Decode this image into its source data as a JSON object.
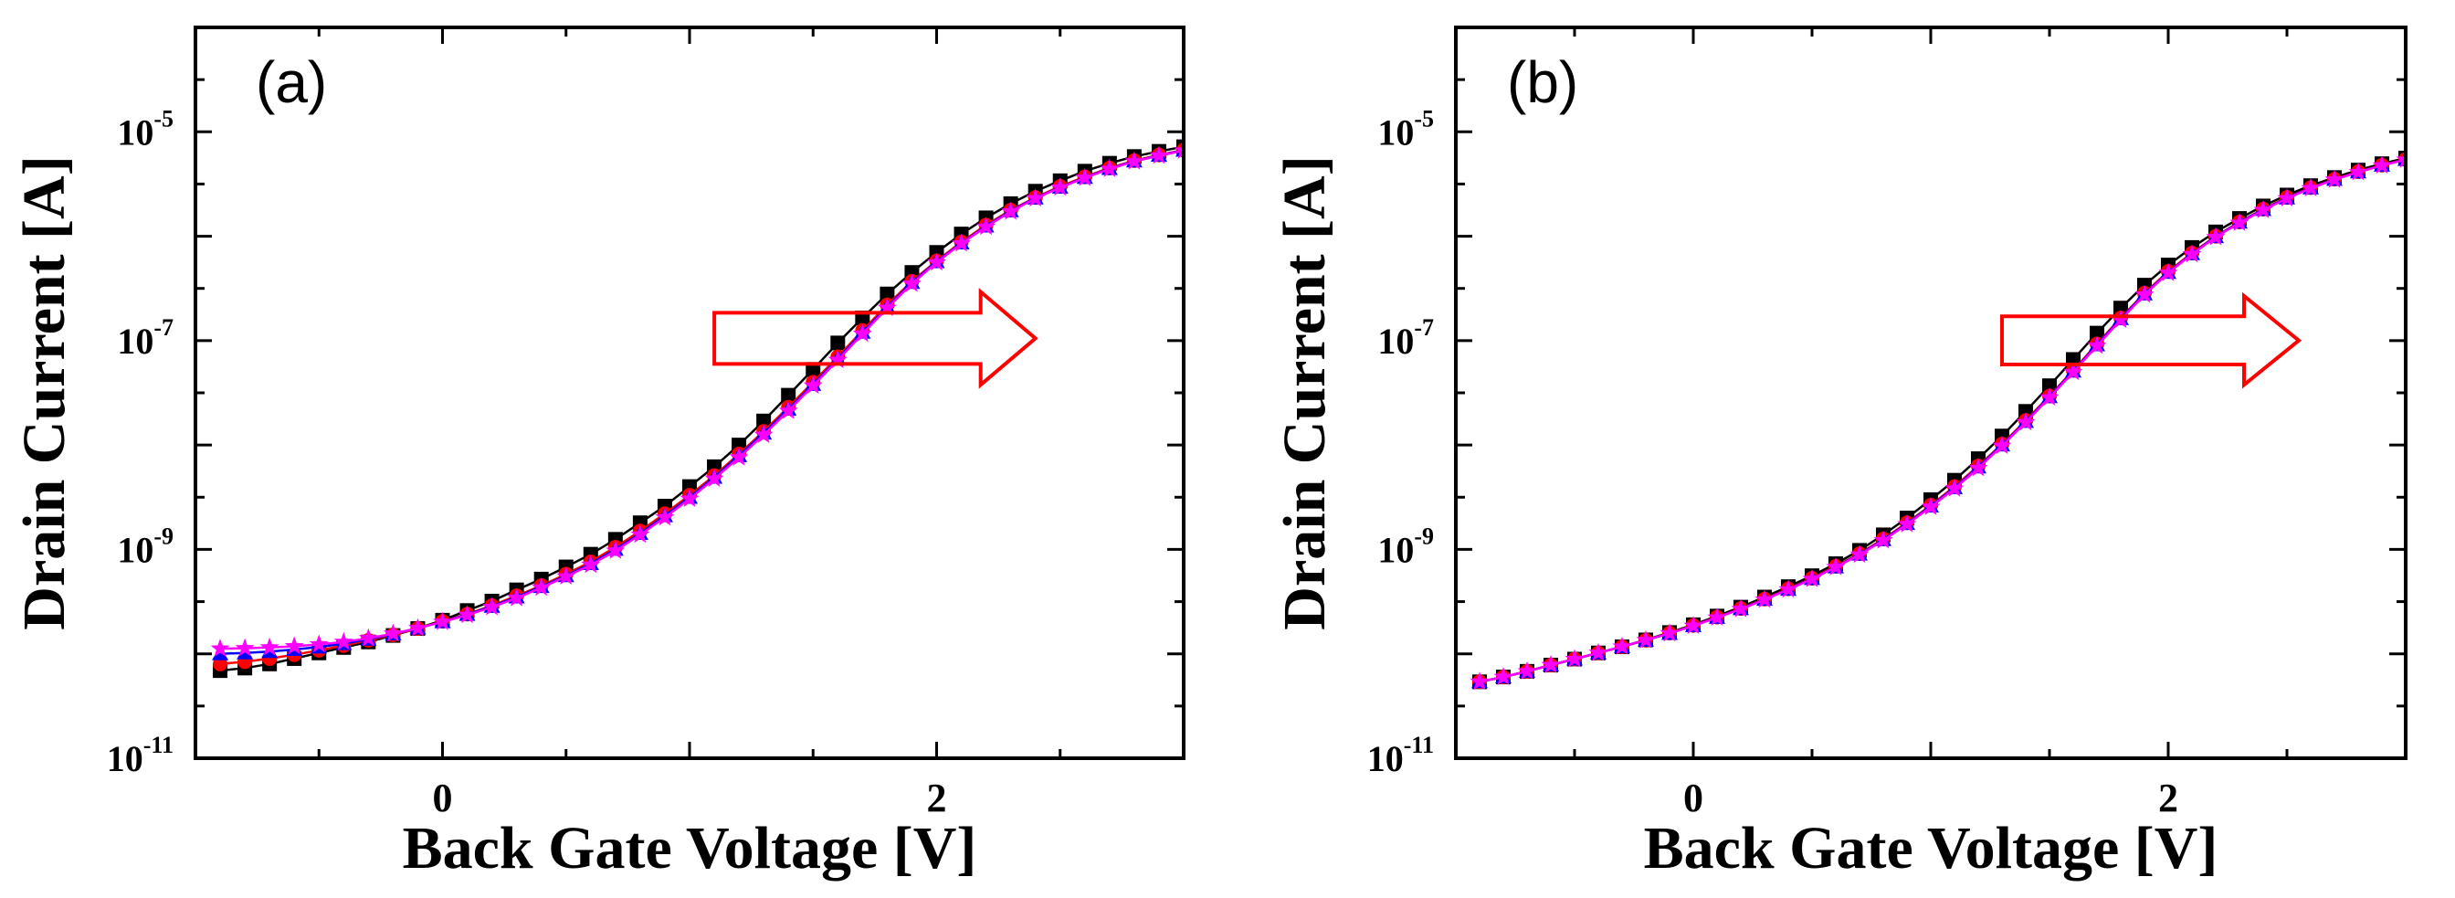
{
  "chart_data": [
    {
      "type": "line",
      "panel_label": "(a)",
      "xlabel": "Back Gate Voltage [V]",
      "ylabel": "Drain Current [A]",
      "xscale": "linear",
      "yscale": "log",
      "xlim": [
        -1.0,
        3.0
      ],
      "ylim": [
        1e-11,
        0.0001
      ],
      "x_ticks": [
        {
          "value": 0,
          "label": "0"
        },
        {
          "value": 2,
          "label": "2"
        }
      ],
      "y_ticks": [
        {
          "value": 1e-11,
          "base": "10",
          "exp": "-11"
        },
        {
          "value": 1e-09,
          "base": "10",
          "exp": "-9"
        },
        {
          "value": 1e-07,
          "base": "10",
          "exp": "-7"
        },
        {
          "value": 1e-05,
          "base": "10",
          "exp": "-5"
        }
      ],
      "annotation": "arrow pointing right (threshold voltage shift)",
      "series": [
        {
          "name": "black squares",
          "color": "#000000",
          "marker": "square",
          "x": [
            -0.9,
            -0.8,
            -0.7,
            -0.6,
            -0.5,
            -0.4,
            -0.3,
            -0.2,
            -0.1,
            0.0,
            0.1,
            0.2,
            0.3,
            0.4,
            0.5,
            0.6,
            0.7,
            0.8,
            0.9,
            1.0,
            1.1,
            1.2,
            1.3,
            1.4,
            1.5,
            1.6,
            1.7,
            1.8,
            1.9,
            2.0,
            2.1,
            2.2,
            2.3,
            2.4,
            2.5,
            2.6,
            2.7,
            2.8,
            2.9,
            3.0
          ],
          "y": [
            6.9e-11,
            7.3e-11,
            8e-11,
            9e-11,
            1.02e-10,
            1.15e-10,
            1.3e-10,
            1.5e-10,
            1.75e-10,
            2.1e-10,
            2.6e-10,
            3.2e-10,
            4.1e-10,
            5.2e-10,
            6.8e-10,
            9e-10,
            1.25e-09,
            1.8e-09,
            2.6e-09,
            4e-09,
            6.2e-09,
            1e-08,
            1.7e-08,
            3e-08,
            5.3e-08,
            9.5e-08,
            1.65e-07,
            2.8e-07,
            4.5e-07,
            7e-07,
            1.05e-06,
            1.5e-06,
            2.05e-06,
            2.7e-06,
            3.4e-06,
            4.2e-06,
            5e-06,
            5.8e-06,
            6.5e-06,
            7.2e-06
          ]
        },
        {
          "name": "red circles",
          "color": "#ff0000",
          "marker": "circle",
          "x": [
            -0.9,
            -0.8,
            -0.7,
            -0.6,
            -0.5,
            -0.4,
            -0.3,
            -0.2,
            -0.1,
            0.0,
            0.1,
            0.2,
            0.3,
            0.4,
            0.5,
            0.6,
            0.7,
            0.8,
            0.9,
            1.0,
            1.1,
            1.2,
            1.3,
            1.4,
            1.5,
            1.6,
            1.7,
            1.8,
            1.9,
            2.0,
            2.1,
            2.2,
            2.3,
            2.4,
            2.5,
            2.6,
            2.7,
            2.8,
            2.9,
            3.0
          ],
          "y": [
            8e-11,
            8.4e-11,
            9e-11,
            9.8e-11,
            1.08e-10,
            1.2e-10,
            1.35e-10,
            1.52e-10,
            1.75e-10,
            2.05e-10,
            2.4e-10,
            2.9e-10,
            3.6e-10,
            4.5e-10,
            5.8e-10,
            7.6e-10,
            1.05e-09,
            1.5e-09,
            2.2e-09,
            3.3e-09,
            5.1e-09,
            8.2e-09,
            1.35e-08,
            2.3e-08,
            4e-08,
            7e-08,
            1.25e-07,
            2.2e-07,
            3.7e-07,
            5.8e-07,
            8.8e-07,
            1.28e-06,
            1.78e-06,
            2.35e-06,
            3e-06,
            3.7e-06,
            4.5e-06,
            5.3e-06,
            6e-06,
            6.7e-06
          ]
        },
        {
          "name": "blue triangles",
          "color": "#0000ff",
          "marker": "triangle",
          "x": [
            -0.9,
            -0.8,
            -0.7,
            -0.6,
            -0.5,
            -0.4,
            -0.3,
            -0.2,
            -0.1,
            0.0,
            0.1,
            0.2,
            0.3,
            0.4,
            0.5,
            0.6,
            0.7,
            0.8,
            0.9,
            1.0,
            1.1,
            1.2,
            1.3,
            1.4,
            1.5,
            1.6,
            1.7,
            1.8,
            1.9,
            2.0,
            2.1,
            2.2,
            2.3,
            2.4,
            2.5,
            2.6,
            2.7,
            2.8,
            2.9,
            3.0
          ],
          "y": [
            1e-10,
            1.02e-10,
            1.05e-10,
            1.1e-10,
            1.16e-10,
            1.25e-10,
            1.38e-10,
            1.55e-10,
            1.76e-10,
            2.03e-10,
            2.38e-10,
            2.85e-10,
            3.5e-10,
            4.4e-10,
            5.6e-10,
            7.3e-10,
            1e-09,
            1.42e-09,
            2.1e-09,
            3.15e-09,
            4.9e-09,
            7.9e-09,
            1.3e-08,
            2.2e-08,
            3.8e-08,
            6.7e-08,
            1.2e-07,
            2.1e-07,
            3.6e-07,
            5.7e-07,
            8.6e-07,
            1.25e-06,
            1.75e-06,
            2.32e-06,
            2.95e-06,
            3.65e-06,
            4.45e-06,
            5.25e-06,
            5.95e-06,
            6.65e-06
          ]
        },
        {
          "name": "magenta stars",
          "color": "#ff00ff",
          "marker": "star",
          "x": [
            -0.9,
            -0.8,
            -0.7,
            -0.6,
            -0.5,
            -0.4,
            -0.3,
            -0.2,
            -0.1,
            0.0,
            0.1,
            0.2,
            0.3,
            0.4,
            0.5,
            0.6,
            0.7,
            0.8,
            0.9,
            1.0,
            1.1,
            1.2,
            1.3,
            1.4,
            1.5,
            1.6,
            1.7,
            1.8,
            1.9,
            2.0,
            2.1,
            2.2,
            2.3,
            2.4,
            2.5,
            2.6,
            2.7,
            2.8,
            2.9,
            3.0
          ],
          "y": [
            1.12e-10,
            1.13e-10,
            1.15e-10,
            1.18e-10,
            1.23e-10,
            1.3e-10,
            1.41e-10,
            1.56e-10,
            1.76e-10,
            2.02e-10,
            2.35e-10,
            2.8e-10,
            3.42e-10,
            4.3e-10,
            5.5e-10,
            7.1e-10,
            9.7e-10,
            1.38e-09,
            2.02e-09,
            3.05e-09,
            4.75e-09,
            7.6e-09,
            1.25e-08,
            2.12e-08,
            3.7e-08,
            6.5e-08,
            1.16e-07,
            2.05e-07,
            3.5e-07,
            5.6e-07,
            8.5e-07,
            1.23e-06,
            1.72e-06,
            2.3e-06,
            2.92e-06,
            3.62e-06,
            4.4e-06,
            5.2e-06,
            5.9e-06,
            6.6e-06
          ]
        }
      ]
    },
    {
      "type": "line",
      "panel_label": "(b)",
      "xlabel": "Back Gate Voltage [V]",
      "ylabel": "Drain Current [A]",
      "xscale": "linear",
      "yscale": "log",
      "xlim": [
        -1.0,
        3.0
      ],
      "ylim": [
        1e-11,
        0.0001
      ],
      "x_ticks": [
        {
          "value": 0,
          "label": "0"
        },
        {
          "value": 2,
          "label": "2"
        }
      ],
      "y_ticks": [
        {
          "value": 1e-11,
          "base": "10",
          "exp": "-11"
        },
        {
          "value": 1e-09,
          "base": "10",
          "exp": "-9"
        },
        {
          "value": 1e-07,
          "base": "10",
          "exp": "-7"
        },
        {
          "value": 1e-05,
          "base": "10",
          "exp": "-5"
        }
      ],
      "annotation": "arrow pointing right (threshold voltage shift)",
      "series": [
        {
          "name": "black squares",
          "color": "#000000",
          "marker": "square",
          "x": [
            -0.9,
            -0.8,
            -0.7,
            -0.6,
            -0.5,
            -0.4,
            -0.3,
            -0.2,
            -0.1,
            0.0,
            0.1,
            0.2,
            0.3,
            0.4,
            0.5,
            0.6,
            0.7,
            0.8,
            0.9,
            1.0,
            1.1,
            1.2,
            1.3,
            1.4,
            1.5,
            1.6,
            1.7,
            1.8,
            1.9,
            2.0,
            2.1,
            2.2,
            2.3,
            2.4,
            2.5,
            2.6,
            2.7,
            2.8,
            2.9,
            3.0
          ],
          "y": [
            5.4e-11,
            6e-11,
            6.8e-11,
            7.8e-11,
            8.9e-11,
            1.02e-10,
            1.17e-10,
            1.36e-10,
            1.6e-10,
            1.9e-10,
            2.3e-10,
            2.8e-10,
            3.5e-10,
            4.4e-10,
            5.6e-10,
            7.3e-10,
            9.8e-10,
            1.38e-09,
            2e-09,
            3e-09,
            4.6e-09,
            7.4e-09,
            1.22e-08,
            2.1e-08,
            3.7e-08,
            6.6e-08,
            1.18e-07,
            2.05e-07,
            3.4e-07,
            5.3e-07,
            7.8e-07,
            1.1e-06,
            1.48e-06,
            1.95e-06,
            2.48e-06,
            3.05e-06,
            3.65e-06,
            4.3e-06,
            4.95e-06,
            5.6e-06
          ]
        },
        {
          "name": "red circles",
          "color": "#ff0000",
          "marker": "circle",
          "x": [
            -0.9,
            -0.8,
            -0.7,
            -0.6,
            -0.5,
            -0.4,
            -0.3,
            -0.2,
            -0.1,
            0.0,
            0.1,
            0.2,
            0.3,
            0.4,
            0.5,
            0.6,
            0.7,
            0.8,
            0.9,
            1.0,
            1.1,
            1.2,
            1.3,
            1.4,
            1.5,
            1.6,
            1.7,
            1.8,
            1.9,
            2.0,
            2.1,
            2.2,
            2.3,
            2.4,
            2.5,
            2.6,
            2.7,
            2.8,
            2.9,
            3.0
          ],
          "y": [
            5.4e-11,
            6e-11,
            6.8e-11,
            7.8e-11,
            8.9e-11,
            1.02e-10,
            1.17e-10,
            1.35e-10,
            1.58e-10,
            1.87e-10,
            2.25e-10,
            2.72e-10,
            3.35e-10,
            4.2e-10,
            5.3e-10,
            6.9e-10,
            9.1e-10,
            1.26e-09,
            1.8e-09,
            2.65e-09,
            4e-09,
            6.3e-09,
            1.02e-08,
            1.72e-08,
            2.95e-08,
            5.2e-08,
            9.3e-08,
            1.65e-07,
            2.85e-07,
            4.6e-07,
            6.9e-07,
            1e-06,
            1.37e-06,
            1.82e-06,
            2.35e-06,
            2.92e-06,
            3.52e-06,
            4.15e-06,
            4.8e-06,
            5.45e-06
          ]
        },
        {
          "name": "blue triangles",
          "color": "#0000ff",
          "marker": "triangle",
          "x": [
            -0.9,
            -0.8,
            -0.7,
            -0.6,
            -0.5,
            -0.4,
            -0.3,
            -0.2,
            -0.1,
            0.0,
            0.1,
            0.2,
            0.3,
            0.4,
            0.5,
            0.6,
            0.7,
            0.8,
            0.9,
            1.0,
            1.1,
            1.2,
            1.3,
            1.4,
            1.5,
            1.6,
            1.7,
            1.8,
            1.9,
            2.0,
            2.1,
            2.2,
            2.3,
            2.4,
            2.5,
            2.6,
            2.7,
            2.8,
            2.9,
            3.0
          ],
          "y": [
            5.4e-11,
            6e-11,
            6.8e-11,
            7.8e-11,
            8.9e-11,
            1.02e-10,
            1.17e-10,
            1.35e-10,
            1.57e-10,
            1.86e-10,
            2.23e-10,
            2.7e-10,
            3.32e-10,
            4.15e-10,
            5.25e-10,
            6.8e-10,
            9e-10,
            1.24e-09,
            1.77e-09,
            2.6e-09,
            3.9e-09,
            6.15e-09,
            1e-08,
            1.68e-08,
            2.9e-08,
            5.1e-08,
            9.1e-08,
            1.62e-07,
            2.8e-07,
            4.5e-07,
            6.8e-07,
            9.9e-07,
            1.36e-06,
            1.8e-06,
            2.32e-06,
            2.9e-06,
            3.5e-06,
            4.12e-06,
            4.78e-06,
            5.42e-06
          ]
        },
        {
          "name": "magenta stars",
          "color": "#ff00ff",
          "marker": "star",
          "x": [
            -0.9,
            -0.8,
            -0.7,
            -0.6,
            -0.5,
            -0.4,
            -0.3,
            -0.2,
            -0.1,
            0.0,
            0.1,
            0.2,
            0.3,
            0.4,
            0.5,
            0.6,
            0.7,
            0.8,
            0.9,
            1.0,
            1.1,
            1.2,
            1.3,
            1.4,
            1.5,
            1.6,
            1.7,
            1.8,
            1.9,
            2.0,
            2.1,
            2.2,
            2.3,
            2.4,
            2.5,
            2.6,
            2.7,
            2.8,
            2.9,
            3.0
          ],
          "y": [
            5.4e-11,
            6e-11,
            6.8e-11,
            7.8e-11,
            8.9e-11,
            1.02e-10,
            1.17e-10,
            1.35e-10,
            1.57e-10,
            1.85e-10,
            2.22e-10,
            2.68e-10,
            3.3e-10,
            4.12e-10,
            5.2e-10,
            6.75e-10,
            8.9e-10,
            1.22e-09,
            1.74e-09,
            2.55e-09,
            3.82e-09,
            6e-09,
            9.8e-09,
            1.65e-08,
            2.85e-08,
            5e-08,
            8.9e-08,
            1.58e-07,
            2.75e-07,
            4.45e-07,
            6.7e-07,
            9.8e-07,
            1.34e-06,
            1.78e-06,
            2.3e-06,
            2.88e-06,
            3.48e-06,
            4.1e-06,
            4.75e-06,
            5.4e-06
          ]
        }
      ]
    }
  ],
  "colors": {
    "arrow": "#ff0000",
    "axes": "#000000",
    "background": "#ffffff"
  }
}
